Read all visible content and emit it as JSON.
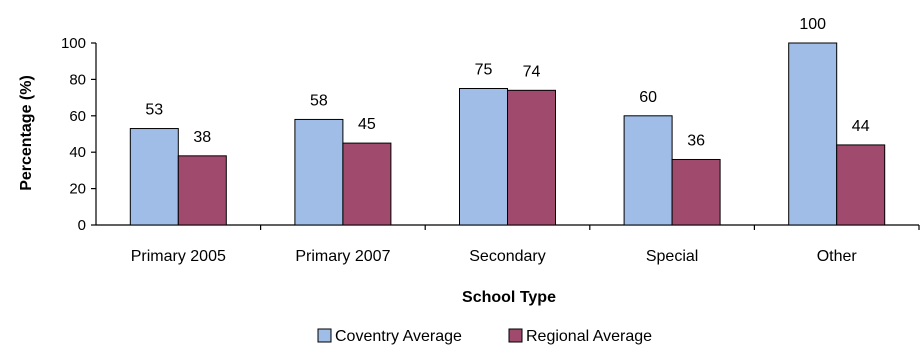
{
  "chart_data": {
    "type": "bar",
    "title": "",
    "xlabel": "School Type",
    "ylabel": "Percentage (%)",
    "ylim": [
      0,
      100
    ],
    "yticks": [
      0,
      20,
      40,
      60,
      80,
      100
    ],
    "grid": false,
    "legend_position": "bottom",
    "categories": [
      "Primary 2005",
      "Primary 2007",
      "Secondary",
      "Special",
      "Other"
    ],
    "series": [
      {
        "name": "Coventry Average",
        "color": "#9fbde7",
        "values": [
          53,
          58,
          75,
          60,
          100
        ]
      },
      {
        "name": "Regional Average",
        "color": "#a04a6d",
        "values": [
          38,
          45,
          74,
          36,
          44
        ]
      }
    ]
  }
}
